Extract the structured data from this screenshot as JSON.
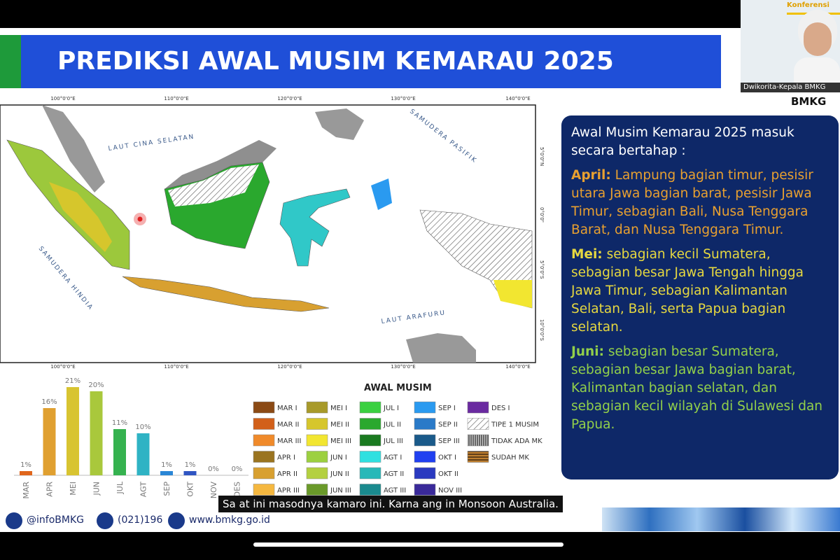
{
  "header": {
    "title": "PREDIKSI AWAL MUSIM KEMARAU 2025"
  },
  "webcam": {
    "banner": "Konferensi",
    "speaker": "Dwikorita-Kepala BMKG",
    "org": "BMKG"
  },
  "map": {
    "lon_labels": [
      "100°0'0\"E",
      "110°0'0\"E",
      "120°0'0\"E",
      "130°0'0\"E",
      "140°0'0\"E"
    ],
    "lat_labels": [
      "5°0'0\"N",
      "0°0'0\"",
      "5°0'0\"S",
      "10°0'0\"S"
    ],
    "sea_labels": [
      "LAUT CINA SELATAN",
      "SAMUDERA PASIFIK",
      "SAMUDERA HINDIA",
      "LAUT ARAFURU"
    ]
  },
  "chart_data": {
    "type": "bar",
    "categories": [
      "MAR",
      "APR",
      "MEI",
      "JUN",
      "JUL",
      "AGT",
      "SEP",
      "OKT",
      "NOV",
      "DES"
    ],
    "values": [
      1,
      16,
      21,
      20,
      11,
      10,
      1,
      1,
      0,
      0
    ],
    "value_labels": [
      "1%",
      "16%",
      "21%",
      "20%",
      "11%",
      "10%",
      "1%",
      "1%",
      "0%",
      "0%"
    ],
    "colors": [
      "#e0661c",
      "#e0a030",
      "#d8c431",
      "#a9c83c",
      "#35b24f",
      "#2fb3c4",
      "#2a86d6",
      "#2f55c2",
      "#5a3fb0",
      "#6a2fa0"
    ],
    "ylim": [
      0,
      25
    ]
  },
  "legend": {
    "title": "AWAL MUSIM",
    "items": [
      {
        "label": "MAR I",
        "color": "#8b4a14"
      },
      {
        "label": "MAR II",
        "color": "#d2601a"
      },
      {
        "label": "MAR III",
        "color": "#f08a2a"
      },
      {
        "label": "APR I",
        "color": "#9a7420"
      },
      {
        "label": "APR II",
        "color": "#d8a030"
      },
      {
        "label": "APR III",
        "color": "#f5b840"
      },
      {
        "label": "MEI I",
        "color": "#a89a2a"
      },
      {
        "label": "MEI II",
        "color": "#d6c62c"
      },
      {
        "label": "MEI III",
        "color": "#f2e630"
      },
      {
        "label": "JUN I",
        "color": "#9cd040"
      },
      {
        "label": "JUN II",
        "color": "#b4d040"
      },
      {
        "label": "JUN III",
        "color": "#6a9a2a"
      },
      {
        "label": "JUL I",
        "color": "#3ad040"
      },
      {
        "label": "JUL II",
        "color": "#2aa82e"
      },
      {
        "label": "JUL III",
        "color": "#1a7a20"
      },
      {
        "label": "AGT I",
        "color": "#30e0e0"
      },
      {
        "label": "AGT II",
        "color": "#28b8b8"
      },
      {
        "label": "AGT III",
        "color": "#1a8a8e"
      },
      {
        "label": "SEP I",
        "color": "#2a9af0"
      },
      {
        "label": "SEP II",
        "color": "#2a7ac8"
      },
      {
        "label": "SEP III",
        "color": "#1a5a8a"
      },
      {
        "label": "OKT I",
        "color": "#2040f0"
      },
      {
        "label": "OKT II",
        "color": "#2a3ac0"
      },
      {
        "label": "NOV III",
        "color": "#3a2a9a"
      },
      {
        "label": "DES I",
        "color": "#6a2aa0"
      },
      {
        "label": "TIPE 1 MUSIM",
        "hatch": "light"
      },
      {
        "label": "TIDAK ADA MK",
        "hatch": "dense"
      },
      {
        "label": "SUDAH MK",
        "hatch": "stripe"
      }
    ]
  },
  "info_panel": {
    "intro": "Awal Musim Kemarau 2025 masuk secara bertahap :",
    "items": [
      {
        "label": "April:",
        "text": "Lampung bagian timur, pesisir utara Jawa bagian barat, pesisir Jawa Timur, sebagian Bali, Nusa Tenggara Barat, dan Nusa Tenggara Timur.",
        "color": "#e8a030"
      },
      {
        "label": "Mei:",
        "text": "sebagian kecil Sumatera, sebagian besar Jawa Tengah hingga Jawa Timur, sebagian Kalimantan Selatan, Bali, serta Papua bagian selatan.",
        "color": "#e6d840"
      },
      {
        "label": "Juni:",
        "text": "sebagian besar Sumatera, sebagian besar Jawa bagian barat, Kalimantan bagian selatan, dan sebagian kecil wilayah di Sulawesi dan Papua.",
        "color": "#92d04a"
      }
    ]
  },
  "caption": "Sa at ini masodnya kamaro ini. Karna ang in Monsoon Australia.",
  "footer": {
    "social": "@infoBMKG",
    "phone": "(021)196",
    "web": "www.bmkg.go.id"
  }
}
